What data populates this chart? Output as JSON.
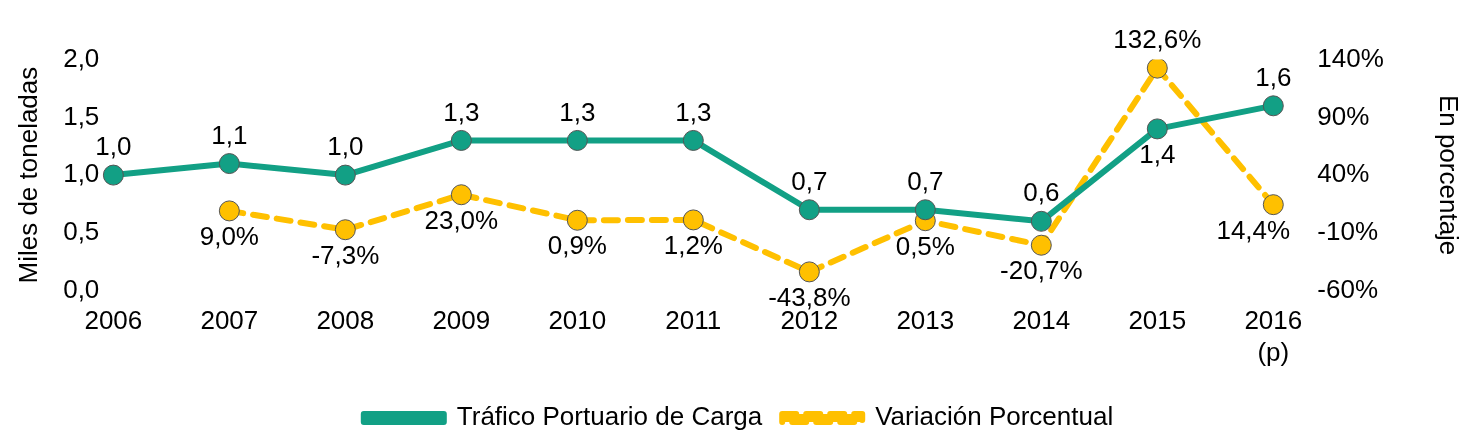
{
  "chart_data": {
    "type": "line",
    "categories": [
      "2006",
      "2007",
      "2008",
      "2009",
      "2010",
      "2011",
      "2012",
      "2013",
      "2014",
      "2015",
      "2016\n(p)"
    ],
    "ylabel": "Miles de toneladas",
    "y2label": "En porcentaje",
    "ylim": [
      0,
      2
    ],
    "yticks": [
      {
        "value": 0,
        "label": "0,0"
      },
      {
        "value": 0.5,
        "label": "0,5"
      },
      {
        "value": 1,
        "label": "1,0"
      },
      {
        "value": 1.5,
        "label": "1,5"
      },
      {
        "value": 2,
        "label": "2,0"
      }
    ],
    "y2lim": [
      -60,
      140
    ],
    "y2ticks": [
      {
        "value": -60,
        "label": "-60%"
      },
      {
        "value": -10,
        "label": "-10%"
      },
      {
        "value": 40,
        "label": "40%"
      },
      {
        "value": 90,
        "label": "90%"
      },
      {
        "value": 140,
        "label": "140%"
      }
    ],
    "grid": false,
    "legend": "bottom",
    "marker": "circle",
    "series": [
      {
        "name": "Tráfico Portuario de Carga",
        "color": "#12a085",
        "line_style": "solid",
        "values": [
          1.0,
          1.1,
          1.0,
          1.3,
          1.3,
          1.3,
          0.7,
          0.7,
          0.6,
          1.4,
          1.6
        ],
        "value_labels": [
          "1,0",
          "1,1",
          "1,0",
          "1,3",
          "1,3",
          "1,3",
          "0,7",
          "0,7",
          "0,6",
          "1,4",
          "1,6"
        ]
      },
      {
        "name": "Variación Porcentual",
        "color": "#ffc000",
        "line_style": "dashed",
        "axis": "y2",
        "values": [
          null,
          9.0,
          -7.3,
          23.0,
          0.9,
          1.2,
          -43.8,
          0.5,
          -20.7,
          132.6,
          14.4
        ],
        "value_labels": [
          null,
          "9,0%",
          "-7,3%",
          "23,0%",
          "0,9%",
          "1,2%",
          "-43,8%",
          "0,5%",
          "-20,7%",
          "132,6%",
          "14,4%"
        ]
      }
    ]
  }
}
